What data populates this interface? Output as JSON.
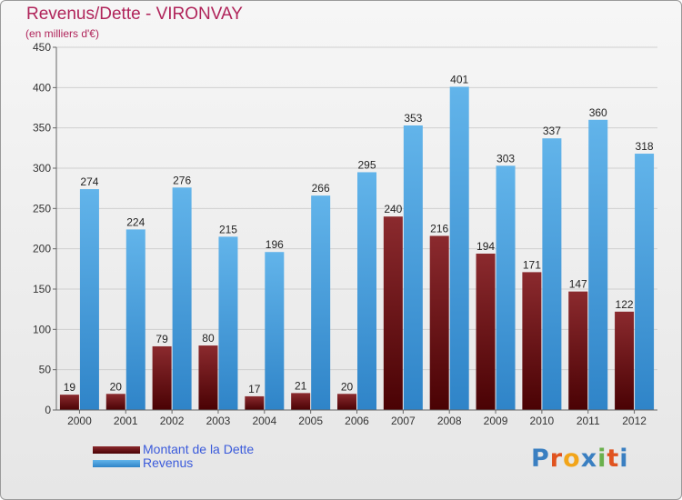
{
  "title": "Revenus/Dette - VIRONVAY",
  "subtitle": "(en milliers d'€)",
  "colors": {
    "dette_top": "#8b2a2e",
    "dette_bottom": "#4a0204",
    "revenus_top": "#62b4ea",
    "revenus_bottom": "#2f84c8",
    "title": "#b0245a",
    "legend_text": "#3b5bdb",
    "grid": "#cfcfcf",
    "axis": "#666666"
  },
  "legend": {
    "dette": "Montant de la Dette",
    "revenus": "Revenus"
  },
  "logo": {
    "letters": [
      "P",
      "r",
      "o",
      "x",
      "i",
      "t",
      "i"
    ],
    "colors": [
      "#3a7fc1",
      "#e0531f",
      "#f2a51a",
      "#3a7fc1",
      "#6ab04c",
      "#e0531f",
      "#3a7fc1"
    ]
  },
  "chart_data": {
    "type": "bar",
    "title": "Revenus/Dette - VIRONVAY",
    "subtitle": "(en milliers d'€)",
    "xlabel": "",
    "ylabel": "",
    "ylim": [
      0,
      450
    ],
    "yticks": [
      0,
      50,
      100,
      150,
      200,
      250,
      300,
      350,
      400,
      450
    ],
    "grid": true,
    "legend_position": "bottom-left",
    "categories": [
      "2000",
      "2001",
      "2002",
      "2003",
      "2004",
      "2005",
      "2006",
      "2007",
      "2008",
      "2009",
      "2010",
      "2011",
      "2012"
    ],
    "series": [
      {
        "name": "Montant de la Dette",
        "values": [
          19,
          20,
          79,
          80,
          17,
          21,
          20,
          240,
          216,
          194,
          171,
          147,
          122
        ]
      },
      {
        "name": "Revenus",
        "values": [
          274,
          224,
          276,
          215,
          196,
          266,
          295,
          353,
          401,
          303,
          337,
          360,
          318
        ]
      }
    ]
  }
}
